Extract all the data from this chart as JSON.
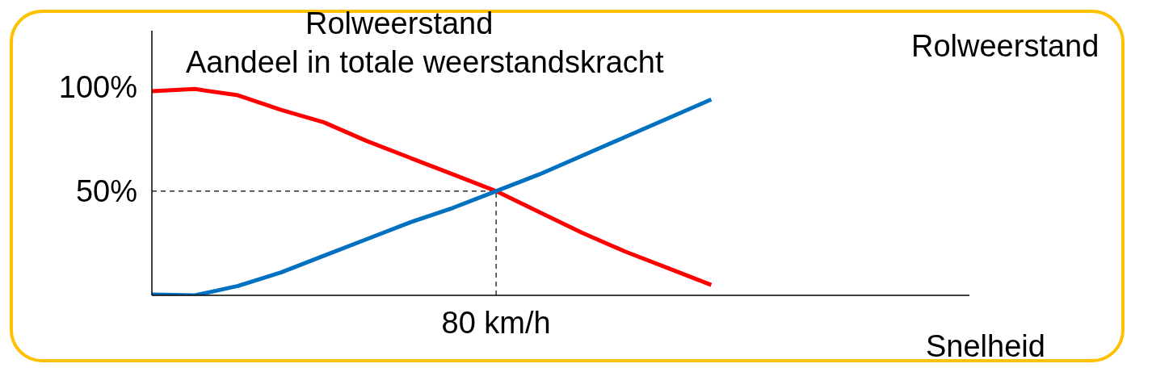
{
  "chart_data": {
    "type": "line",
    "ylabel": "Aandeel in totale weerstandskracht",
    "xlabel": "Snelheid",
    "annotations": [
      "Rolweerstand",
      "Rolweerstand",
      {
        "text": "80 km/h",
        "y": 50
      }
    ],
    "categories": [
      null,
      null,
      null,
      null,
      null,
      null,
      null,
      null,
      null,
      null,
      null,
      null,
      null,
      null,
      null,
      null,
      null,
      null,
      null,
      null
    ],
    "series": [
      {
        "color": "#ff0000",
        "values": [
          98,
          99,
          96,
          89,
          83,
          74,
          66,
          58,
          50,
          40,
          30,
          21,
          13,
          5,
          null,
          null,
          null,
          null,
          null,
          null
        ]
      },
      {
        "color": "#0070c0",
        "values": [
          0.4,
          0,
          4.5,
          11,
          19,
          27,
          35,
          42,
          50,
          58,
          67,
          76,
          85,
          94,
          null,
          null,
          null,
          null,
          null,
          null
        ]
      }
    ],
    "ylim": [
      0,
      127
    ],
    "yticks": [
      {
        "value": 50,
        "label": "50%"
      },
      {
        "value": 100,
        "label": "100%"
      }
    ],
    "ref_lines": [
      {
        "axis": "y",
        "value": 50,
        "line_style": "dashed",
        "color": "#000000"
      }
    ],
    "grid": false,
    "legend": false,
    "marker": "none",
    "line_style": "solid"
  }
}
